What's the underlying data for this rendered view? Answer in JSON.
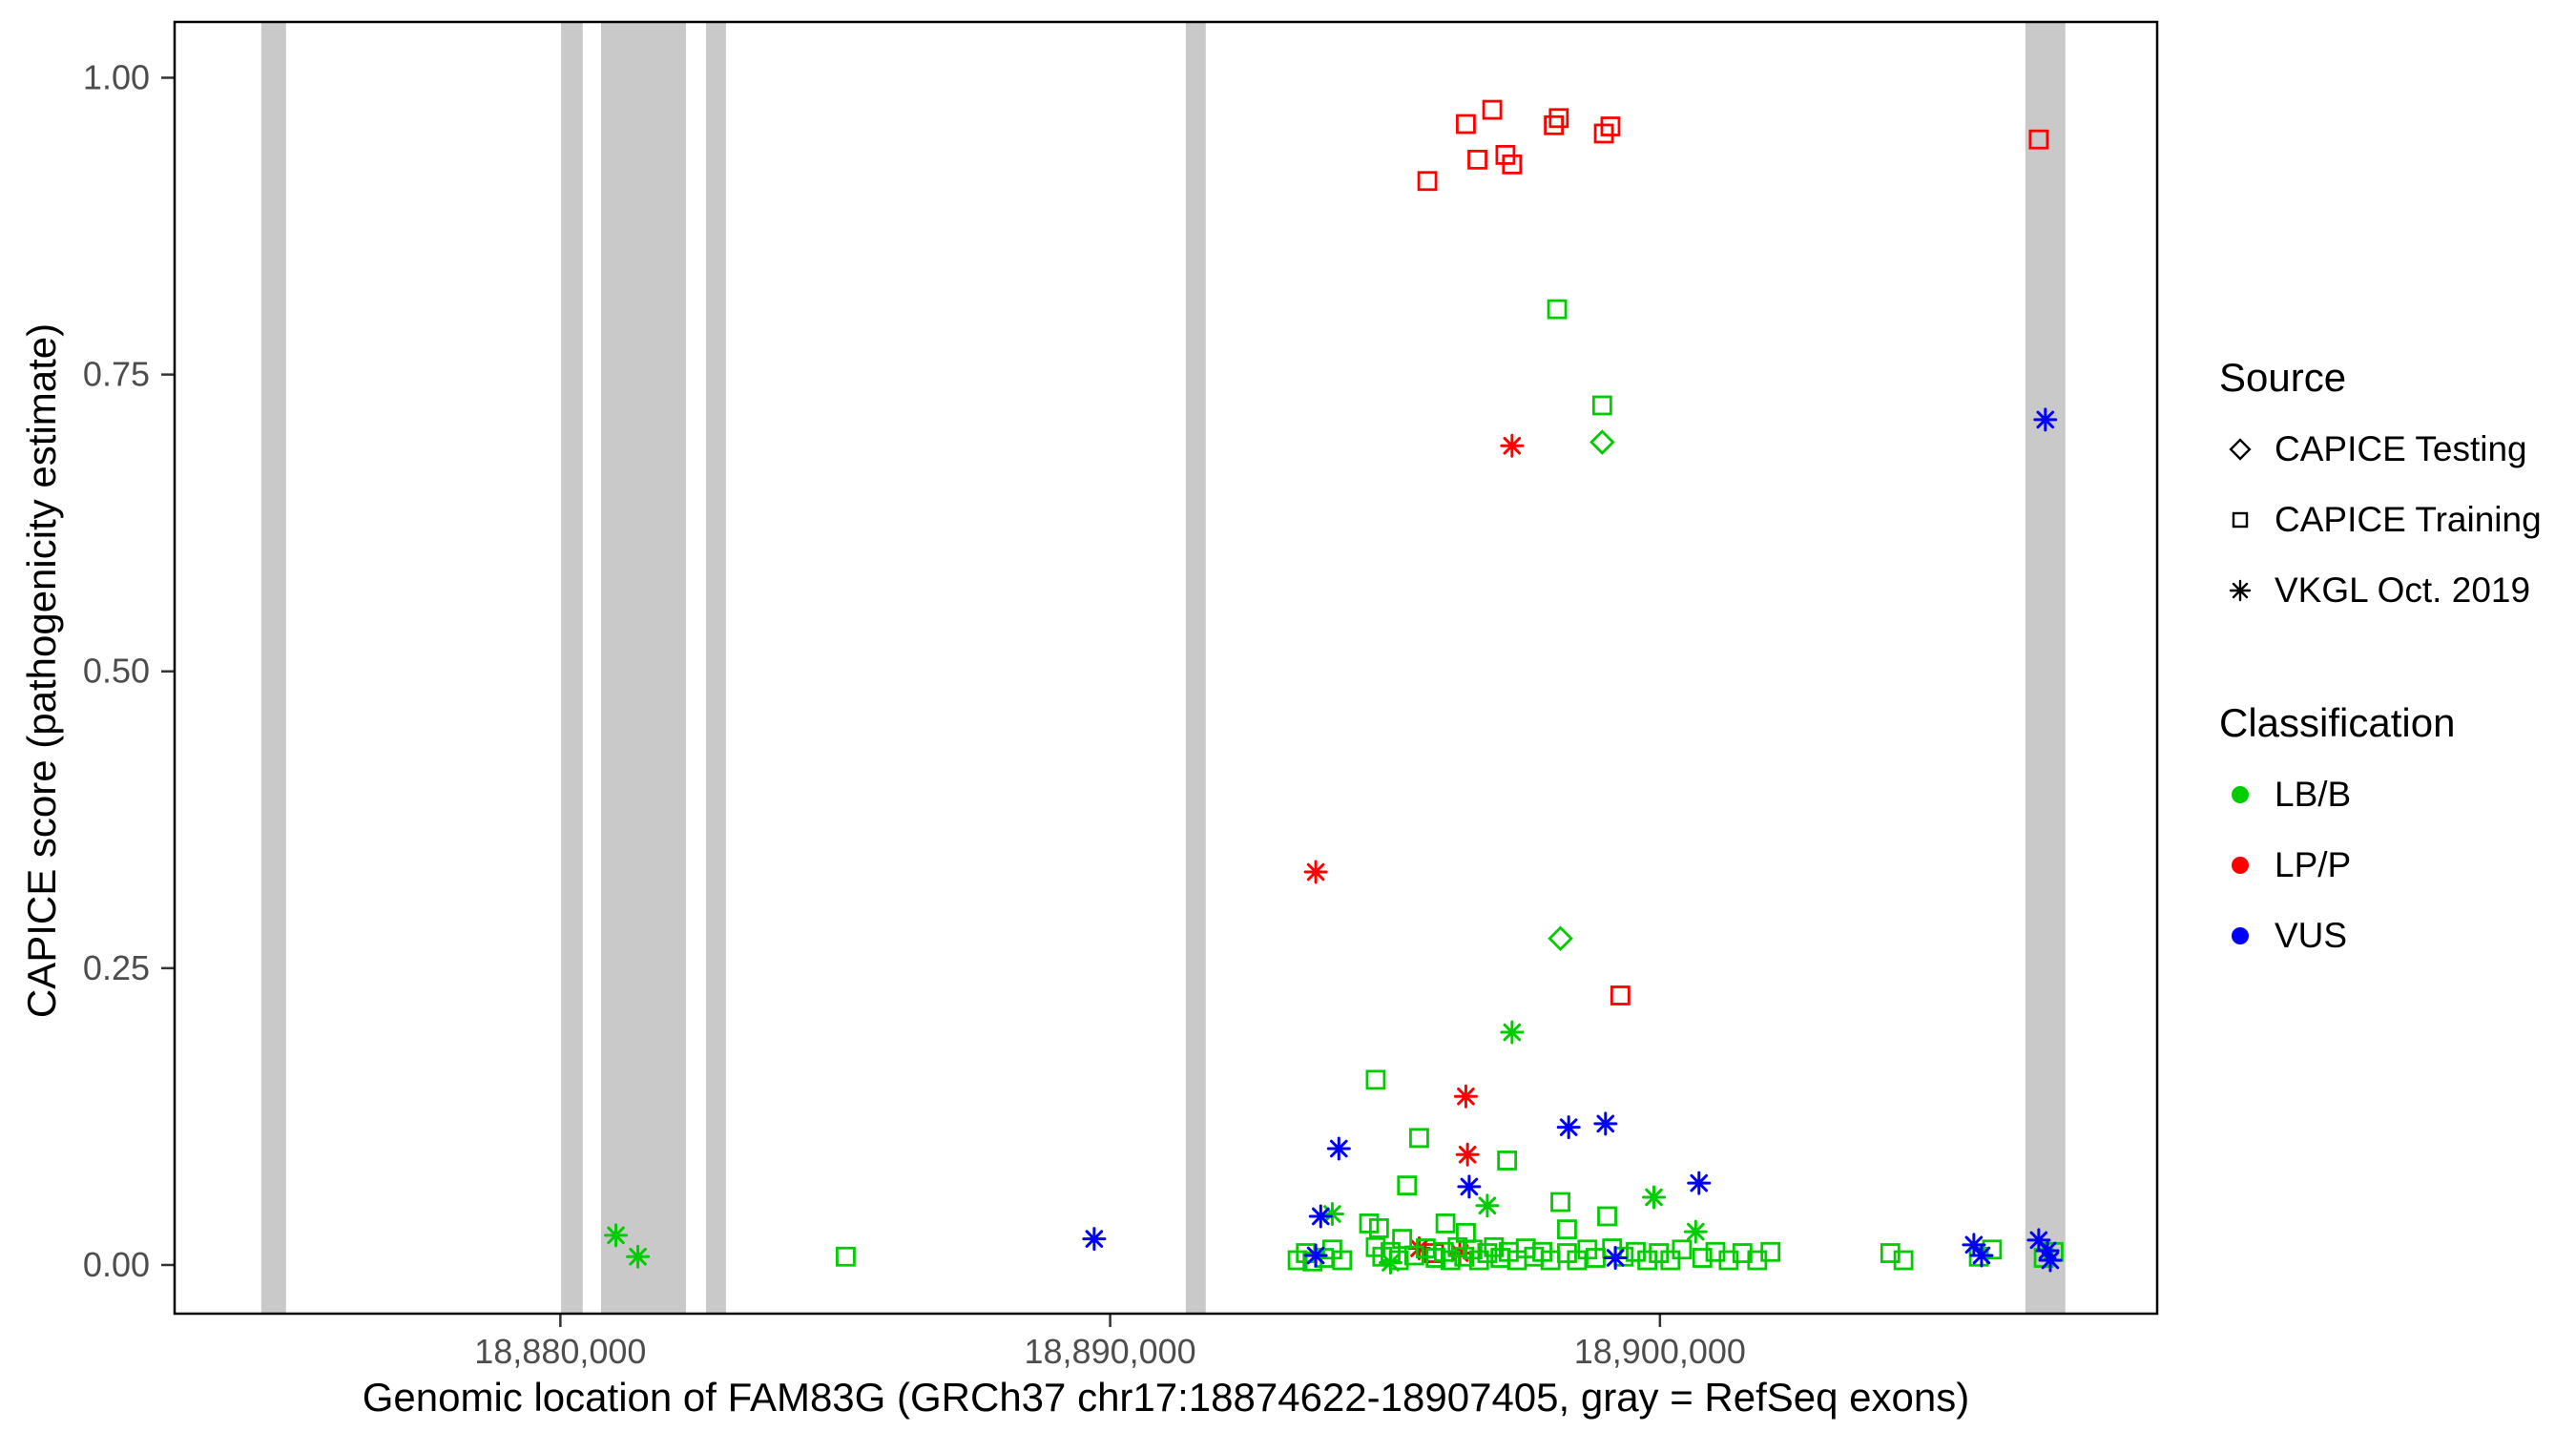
{
  "chart_data": {
    "type": "scatter",
    "title": "",
    "xlabel": "Genomic location of FAM83G (GRCh37 chr17:18874622-18907405, gray = RefSeq exons)",
    "ylabel": "CAPICE score (pathogenicity estimate)",
    "xlim": [
      18872983,
      18909044
    ],
    "ylim": [
      -0.041,
      1.047
    ],
    "grid": false,
    "panel_border_color": "#000000",
    "tick_label_color": "#4D4D4D",
    "exon_color": "#C9C9C9",
    "x_ticks": [
      {
        "value": 18880000,
        "label": "18,880,000"
      },
      {
        "value": 18890000,
        "label": "18,890,000"
      },
      {
        "value": 18900000,
        "label": "18,900,000"
      }
    ],
    "y_ticks": [
      {
        "value": 0.0,
        "label": "0.00"
      },
      {
        "value": 0.25,
        "label": "0.25"
      },
      {
        "value": 0.5,
        "label": "0.50"
      },
      {
        "value": 0.75,
        "label": "0.75"
      },
      {
        "value": 1.0,
        "label": "1.00"
      }
    ],
    "exons": [
      [
        18874560,
        18875010
      ],
      [
        18880013,
        18880407
      ],
      [
        18880740,
        18882285
      ],
      [
        18882649,
        18883012
      ],
      [
        18891375,
        18891739
      ],
      [
        18906646,
        18907374
      ]
    ],
    "legend": {
      "source": {
        "title": "Source",
        "items": [
          {
            "label": "CAPICE Testing",
            "marker": "diamond"
          },
          {
            "label": "CAPICE Training",
            "marker": "square"
          },
          {
            "label": "VKGL Oct. 2019",
            "marker": "asterisk"
          }
        ]
      },
      "classification": {
        "title": "Classification",
        "items": [
          {
            "label": "LB/B",
            "color": "#00CC00"
          },
          {
            "label": "LP/P",
            "color": "#FF0000"
          },
          {
            "label": "VUS",
            "color": "#0000FF"
          }
        ]
      }
    },
    "series": [
      {
        "name": "CAPICE Training / LP/P",
        "source": "CAPICE Training",
        "classification": "LP/P",
        "marker": "square",
        "color": "#FF0000",
        "points": [
          [
            18895770,
            0.913
          ],
          [
            18896470,
            0.961
          ],
          [
            18896680,
            0.931
          ],
          [
            18896950,
            0.973
          ],
          [
            18897190,
            0.935
          ],
          [
            18897310,
            0.927
          ],
          [
            18898070,
            0.96
          ],
          [
            18898160,
            0.966
          ],
          [
            18898980,
            0.953
          ],
          [
            18899100,
            0.959
          ],
          [
            18906890,
            0.948
          ],
          [
            18899280,
            0.227
          ],
          [
            18895890,
            0.01
          ]
        ]
      },
      {
        "name": "VKGL Oct. 2019 / LP/P",
        "source": "VKGL Oct. 2019",
        "classification": "LP/P",
        "marker": "asterisk",
        "color": "#FF0000",
        "points": [
          [
            18897310,
            0.69
          ],
          [
            18893740,
            0.331
          ],
          [
            18896470,
            0.142
          ],
          [
            18896500,
            0.093
          ],
          [
            18895620,
            0.014
          ],
          [
            18896360,
            0.01
          ]
        ]
      },
      {
        "name": "CAPICE Testing / LB/B",
        "source": "CAPICE Testing",
        "classification": "LB/B",
        "marker": "diamond",
        "color": "#00CC00",
        "points": [
          [
            18898950,
            0.693
          ],
          [
            18898190,
            0.275
          ]
        ]
      },
      {
        "name": "CAPICE Training / LB/B",
        "source": "CAPICE Training",
        "classification": "LB/B",
        "marker": "square",
        "color": "#00CC00",
        "points": [
          [
            18898130,
            0.805
          ],
          [
            18898950,
            0.724
          ],
          [
            18894830,
            0.156
          ],
          [
            18895620,
            0.107
          ],
          [
            18897220,
            0.088
          ],
          [
            18895400,
            0.067
          ],
          [
            18898190,
            0.053
          ],
          [
            18899040,
            0.041
          ],
          [
            18894710,
            0.035
          ],
          [
            18896100,
            0.035
          ],
          [
            18894890,
            0.031
          ],
          [
            18898310,
            0.03
          ],
          [
            18896470,
            0.027
          ],
          [
            18895310,
            0.022
          ],
          [
            18885190,
            0.007
          ],
          [
            18893410,
            0.004
          ],
          [
            18893560,
            0.01
          ],
          [
            18893680,
            0.003
          ],
          [
            18893890,
            0.006
          ],
          [
            18894040,
            0.013
          ],
          [
            18894220,
            0.004
          ],
          [
            18894830,
            0.015
          ],
          [
            18894950,
            0.007
          ],
          [
            18895100,
            0.011
          ],
          [
            18895250,
            0.004
          ],
          [
            18895530,
            0.008
          ],
          [
            18895740,
            0.014
          ],
          [
            18895920,
            0.006
          ],
          [
            18896070,
            0.011
          ],
          [
            18896190,
            0.004
          ],
          [
            18896320,
            0.015
          ],
          [
            18896440,
            0.007
          ],
          [
            18896590,
            0.013
          ],
          [
            18896710,
            0.004
          ],
          [
            18896860,
            0.01
          ],
          [
            18896980,
            0.015
          ],
          [
            18897100,
            0.006
          ],
          [
            18897250,
            0.011
          ],
          [
            18897400,
            0.004
          ],
          [
            18897560,
            0.014
          ],
          [
            18897710,
            0.007
          ],
          [
            18897860,
            0.011
          ],
          [
            18898010,
            0.004
          ],
          [
            18898310,
            0.01
          ],
          [
            18898490,
            0.004
          ],
          [
            18898680,
            0.013
          ],
          [
            18898830,
            0.006
          ],
          [
            18899130,
            0.014
          ],
          [
            18899340,
            0.007
          ],
          [
            18899560,
            0.011
          ],
          [
            18899770,
            0.004
          ],
          [
            18899980,
            0.01
          ],
          [
            18900190,
            0.004
          ],
          [
            18900400,
            0.013
          ],
          [
            18900770,
            0.006
          ],
          [
            18901010,
            0.011
          ],
          [
            18901250,
            0.004
          ],
          [
            18901500,
            0.01
          ],
          [
            18901770,
            0.004
          ],
          [
            18902010,
            0.011
          ],
          [
            18904190,
            0.01
          ],
          [
            18904430,
            0.004
          ],
          [
            18905800,
            0.007
          ],
          [
            18906040,
            0.013
          ],
          [
            18906980,
            0.006
          ],
          [
            18907160,
            0.011
          ]
        ]
      },
      {
        "name": "VKGL Oct. 2019 / LB/B",
        "source": "VKGL Oct. 2019",
        "classification": "LB/B",
        "marker": "asterisk",
        "color": "#00CC00",
        "points": [
          [
            18897310,
            0.196
          ],
          [
            18899890,
            0.057
          ],
          [
            18896860,
            0.05
          ],
          [
            18894040,
            0.043
          ],
          [
            18900650,
            0.028
          ],
          [
            18881010,
            0.025
          ],
          [
            18881410,
            0.007
          ],
          [
            18895100,
            0.002
          ]
        ]
      },
      {
        "name": "VKGL Oct. 2019 / VUS",
        "source": "VKGL Oct. 2019",
        "classification": "VUS",
        "marker": "asterisk",
        "color": "#0000FF",
        "points": [
          [
            18907010,
            0.712
          ],
          [
            18899010,
            0.119
          ],
          [
            18898340,
            0.116
          ],
          [
            18894160,
            0.098
          ],
          [
            18900710,
            0.069
          ],
          [
            18896530,
            0.066
          ],
          [
            18893830,
            0.041
          ],
          [
            18889710,
            0.022
          ],
          [
            18906890,
            0.021
          ],
          [
            18905710,
            0.017
          ],
          [
            18905850,
            0.008
          ],
          [
            18893740,
            0.008
          ],
          [
            18899190,
            0.006
          ],
          [
            18907050,
            0.012
          ],
          [
            18907100,
            0.004
          ]
        ]
      }
    ]
  }
}
